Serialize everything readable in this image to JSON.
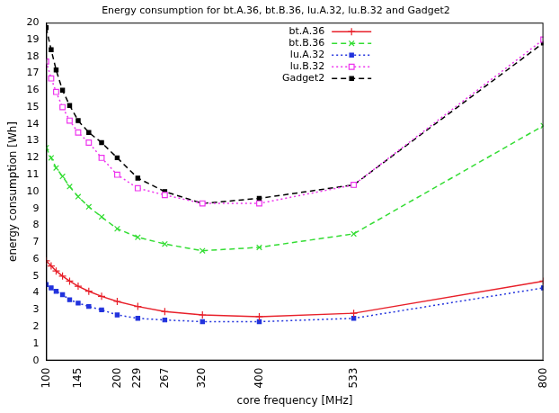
{
  "chart_data": {
    "type": "line",
    "title": "Energy consumption for bt.A.36, bt.B.36, lu.A.32, lu.B.32 and Gadget2",
    "x_label": "core frequency [MHz]",
    "y_label": "energy consumption [Wh]",
    "x": [
      100,
      107,
      114,
      123,
      133,
      145,
      160,
      178,
      200,
      229,
      267,
      320,
      400,
      533,
      800
    ],
    "series": [
      {
        "name": "bt.A.36",
        "color": "#e8202a",
        "line_style": "solid",
        "marker": "plus",
        "values": [
          5.9,
          5.6,
          5.3,
          5.0,
          4.7,
          4.4,
          4.1,
          3.8,
          3.5,
          3.2,
          2.9,
          2.7,
          2.6,
          2.8,
          4.7
        ]
      },
      {
        "name": "bt.B.36",
        "color": "#33dd33",
        "line_style": "dashed",
        "marker": "cross",
        "values": [
          12.6,
          12.0,
          11.4,
          10.9,
          10.3,
          9.7,
          9.1,
          8.5,
          7.8,
          7.3,
          6.9,
          6.5,
          6.7,
          7.5,
          13.9
        ]
      },
      {
        "name": "lu.A.32",
        "color": "#2233dd",
        "line_style": "dotted",
        "marker": "filled_square",
        "values": [
          4.5,
          4.3,
          4.1,
          3.9,
          3.6,
          3.4,
          3.2,
          3.0,
          2.7,
          2.5,
          2.4,
          2.3,
          2.3,
          2.5,
          4.3
        ]
      },
      {
        "name": "lu.B.32",
        "color": "#ee33ee",
        "line_style": "dotted",
        "marker": "open_square",
        "values": [
          17.7,
          16.7,
          15.9,
          15.0,
          14.2,
          13.5,
          12.9,
          12.0,
          11.0,
          10.2,
          9.8,
          9.3,
          9.3,
          10.4,
          19.0
        ]
      },
      {
        "name": "Gadget2",
        "color": "#000000",
        "line_style": "dashed",
        "marker": "filled_square",
        "values": [
          19.7,
          18.4,
          17.2,
          16.0,
          15.1,
          14.2,
          13.5,
          12.9,
          12.0,
          10.8,
          10.0,
          9.3,
          9.6,
          10.4,
          18.8
        ]
      }
    ],
    "xlim": [
      100,
      800
    ],
    "xticks": [
      100,
      145,
      200,
      229,
      267,
      320,
      400,
      533,
      800
    ],
    "ylim": [
      0,
      20
    ],
    "yticks": [
      0,
      1,
      2,
      3,
      4,
      5,
      6,
      7,
      8,
      9,
      10,
      11,
      12,
      13,
      14,
      15,
      16,
      17,
      18,
      19,
      20
    ],
    "grid": false,
    "legend": "top"
  }
}
